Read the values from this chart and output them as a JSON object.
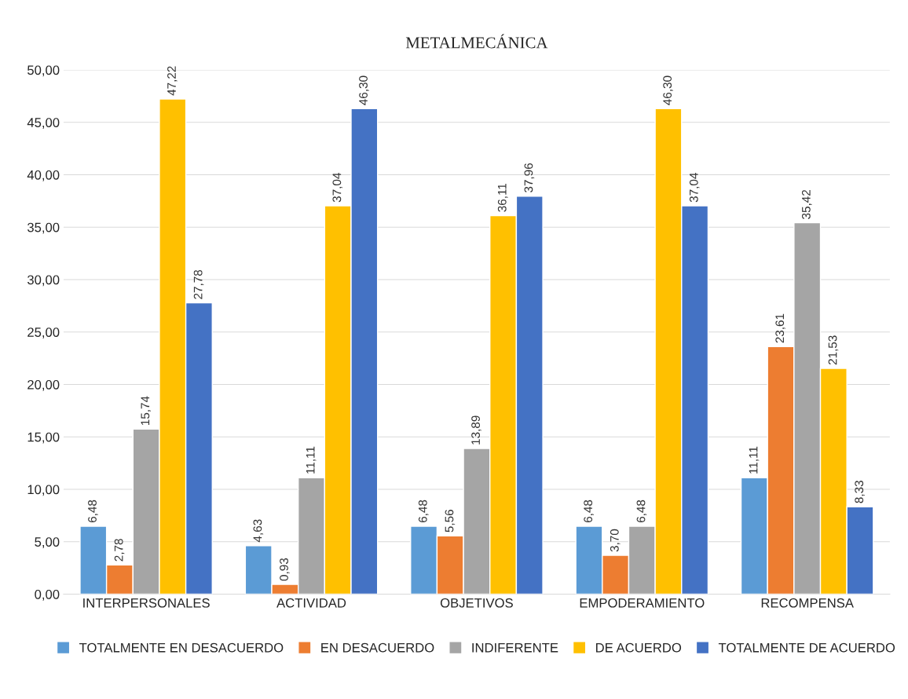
{
  "chart_data": {
    "type": "bar",
    "title": "METALMECÁNICA",
    "categories": [
      "INTERPERSONALES",
      "ACTIVIDAD",
      "OBJETIVOS",
      "EMPODERAMIENTO",
      "RECOMPENSA"
    ],
    "series": [
      {
        "name": "TOTALMENTE EN DESACUERDO",
        "color": "#5b9bd5",
        "values": [
          6.48,
          4.63,
          6.48,
          6.48,
          11.11
        ],
        "value_labels": [
          "6,48",
          "4,63",
          "6,48",
          "6,48",
          "11,11"
        ]
      },
      {
        "name": "EN DESACUERDO",
        "color": "#ed7d31",
        "values": [
          2.78,
          0.93,
          5.56,
          3.7,
          23.61
        ],
        "value_labels": [
          "2,78",
          "0,93",
          "5,56",
          "3,70",
          "23,61"
        ]
      },
      {
        "name": "INDIFERENTE",
        "color": "#a5a5a5",
        "values": [
          15.74,
          11.11,
          13.89,
          6.48,
          35.42
        ],
        "value_labels": [
          "15,74",
          "11,11",
          "13,89",
          "6,48",
          "35,42"
        ]
      },
      {
        "name": "DE ACUERDO",
        "color": "#ffc000",
        "values": [
          47.22,
          37.04,
          36.11,
          46.3,
          21.53
        ],
        "value_labels": [
          "47,22",
          "37,04",
          "36,11",
          "46,30",
          "21,53"
        ]
      },
      {
        "name": "TOTALMENTE DE ACUERDO",
        "color": "#4472c4",
        "values": [
          27.78,
          46.3,
          37.96,
          37.04,
          8.33
        ],
        "value_labels": [
          "27,78",
          "46,30",
          "37,96",
          "37,04",
          "8,33"
        ]
      }
    ],
    "ylim": [
      0,
      50
    ],
    "yticks": [
      {
        "value": 0,
        "label": "0,00"
      },
      {
        "value": 5,
        "label": "5,00"
      },
      {
        "value": 10,
        "label": "10,00"
      },
      {
        "value": 15,
        "label": "15,00"
      },
      {
        "value": 20,
        "label": "20,00"
      },
      {
        "value": 25,
        "label": "25,00"
      },
      {
        "value": 30,
        "label": "30,00"
      },
      {
        "value": 35,
        "label": "35,00"
      },
      {
        "value": 40,
        "label": "40,00"
      },
      {
        "value": 45,
        "label": "45,00"
      },
      {
        "value": 50,
        "label": "50,00"
      }
    ],
    "grid": "y",
    "legend": "bottom"
  }
}
